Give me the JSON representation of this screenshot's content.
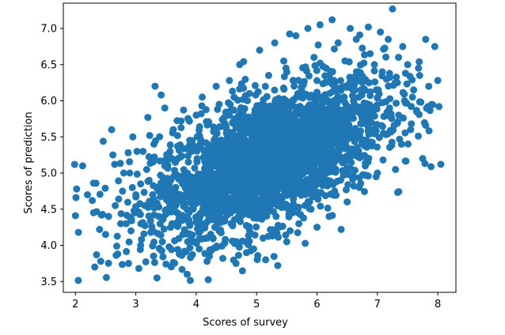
{
  "chart_data": {
    "type": "scatter",
    "title": "",
    "xlabel": "Scores of survey",
    "ylabel": "Scores of prediction",
    "xlim": [
      1.8,
      8.3
    ],
    "ylim": [
      3.35,
      7.35
    ],
    "x_ticks": [
      {
        "value": 2,
        "label": "2"
      },
      {
        "value": 3,
        "label": "3"
      },
      {
        "value": 4,
        "label": "4"
      },
      {
        "value": 5,
        "label": "5"
      },
      {
        "value": 6,
        "label": "6"
      },
      {
        "value": 7,
        "label": "7"
      },
      {
        "value": 8,
        "label": "8"
      }
    ],
    "y_ticks": [
      {
        "value": 3.5,
        "label": "3.5"
      },
      {
        "value": 4.0,
        "label": "4.0"
      },
      {
        "value": 4.5,
        "label": "4.5"
      },
      {
        "value": 5.0,
        "label": "5.0"
      },
      {
        "value": 5.5,
        "label": "5.5"
      },
      {
        "value": 6.0,
        "label": "6.0"
      },
      {
        "value": 6.5,
        "label": "6.5"
      },
      {
        "value": 7.0,
        "label": "7.0"
      }
    ],
    "grid": false,
    "legend": "none",
    "marker_color": "#1f77b4",
    "points": [
      [
        2.02,
        4.78
      ],
      [
        2.01,
        4.66
      ],
      [
        2.0,
        4.41
      ],
      [
        2.05,
        4.18
      ],
      [
        2.12,
        5.1
      ],
      [
        2.2,
        4.7
      ],
      [
        2.28,
        4.62
      ],
      [
        2.3,
        4.86
      ],
      [
        2.32,
        3.7
      ],
      [
        2.35,
        3.87
      ],
      [
        2.3,
        4.45
      ],
      [
        2.4,
        4.22
      ],
      [
        2.42,
        3.78
      ],
      [
        2.46,
        5.44
      ],
      [
        2.5,
        4.15
      ],
      [
        2.55,
        4.4
      ],
      [
        2.6,
        5.6
      ],
      [
        2.62,
        5.25
      ],
      [
        2.65,
        5.12
      ],
      [
        2.66,
        4.55
      ],
      [
        2.7,
        3.88
      ],
      [
        2.75,
        4.3
      ],
      [
        2.78,
        4.75
      ],
      [
        2.8,
        5.0
      ],
      [
        2.84,
        4.3
      ],
      [
        2.88,
        3.75
      ],
      [
        2.9,
        5.0
      ],
      [
        2.95,
        5.5
      ],
      [
        3.0,
        4.7
      ],
      [
        3.02,
        5.3
      ],
      [
        3.05,
        3.68
      ],
      [
        3.08,
        4.0
      ],
      [
        3.12,
        5.3
      ],
      [
        3.15,
        4.55
      ],
      [
        3.2,
        5.77
      ],
      [
        3.22,
        4.9
      ],
      [
        3.25,
        4.18
      ],
      [
        3.3,
        5.4
      ],
      [
        3.35,
        3.55
      ],
      [
        3.38,
        4.75
      ],
      [
        3.42,
        6.08
      ],
      [
        3.44,
        4.05
      ],
      [
        3.48,
        5.9
      ],
      [
        3.5,
        3.74
      ],
      [
        3.55,
        5.2
      ],
      [
        3.6,
        4.3
      ],
      [
        3.62,
        5.6
      ],
      [
        3.68,
        4.6
      ],
      [
        3.72,
        3.88
      ],
      [
        3.75,
        5.72
      ],
      [
        3.78,
        4.95
      ],
      [
        3.85,
        3.6
      ],
      [
        3.9,
        5.35
      ],
      [
        3.95,
        4.5
      ],
      [
        4.0,
        5.8
      ],
      [
        4.05,
        3.95
      ],
      [
        4.1,
        6.05
      ],
      [
        4.12,
        4.6
      ],
      [
        4.18,
        3.78
      ],
      [
        4.22,
        5.3
      ],
      [
        4.28,
        4.1
      ],
      [
        4.33,
        6.2
      ],
      [
        4.38,
        4.75
      ],
      [
        4.44,
        3.82
      ],
      [
        4.5,
        5.55
      ],
      [
        4.55,
        6.28
      ],
      [
        4.6,
        4.3
      ],
      [
        4.66,
        3.75
      ],
      [
        4.72,
        6.5
      ],
      [
        4.78,
        4.9
      ],
      [
        4.82,
        4.05
      ],
      [
        4.88,
        6.1
      ],
      [
        4.95,
        3.95
      ],
      [
        5.0,
        5.4
      ],
      [
        5.05,
        6.7
      ],
      [
        5.1,
        4.6
      ],
      [
        5.15,
        3.8
      ],
      [
        5.2,
        6.35
      ],
      [
        5.25,
        4.2
      ],
      [
        5.3,
        6.8
      ],
      [
        5.35,
        3.72
      ],
      [
        5.4,
        5.0
      ],
      [
        5.45,
        6.55
      ],
      [
        5.5,
        4.05
      ],
      [
        5.55,
        5.75
      ],
      [
        5.6,
        4.45
      ],
      [
        5.65,
        6.9
      ],
      [
        5.7,
        4.3
      ],
      [
        5.75,
        6.2
      ],
      [
        5.8,
        4.75
      ],
      [
        5.85,
        7.0
      ],
      [
        5.9,
        4.5
      ],
      [
        5.95,
        6.6
      ],
      [
        6.0,
        4.25
      ],
      [
        6.05,
        7.05
      ],
      [
        6.1,
        5.0
      ],
      [
        6.15,
        6.45
      ],
      [
        6.2,
        4.4
      ],
      [
        6.25,
        7.12
      ],
      [
        6.3,
        5.3
      ],
      [
        6.35,
        6.8
      ],
      [
        6.4,
        4.22
      ],
      [
        6.45,
        6.05
      ],
      [
        6.5,
        4.6
      ],
      [
        6.55,
        7.0
      ],
      [
        6.6,
        5.55
      ],
      [
        6.65,
        6.85
      ],
      [
        6.7,
        4.8
      ],
      [
        6.75,
        6.25
      ],
      [
        6.8,
        5.1
      ],
      [
        6.85,
        7.02
      ],
      [
        6.9,
        5.7
      ],
      [
        6.95,
        6.5
      ],
      [
        7.0,
        5.0
      ],
      [
        7.05,
        6.95
      ],
      [
        7.1,
        5.55
      ],
      [
        7.15,
        6.3
      ],
      [
        7.2,
        5.9
      ],
      [
        7.25,
        7.27
      ],
      [
        7.3,
        5.05
      ],
      [
        7.35,
        6.6
      ],
      [
        7.4,
        5.4
      ],
      [
        7.45,
        6.0
      ],
      [
        7.5,
        6.5
      ],
      [
        7.55,
        5.6
      ],
      [
        7.6,
        6.15
      ],
      [
        7.65,
        5.85
      ],
      [
        7.7,
        6.35
      ],
      [
        7.75,
        5.2
      ],
      [
        7.8,
        6.85
      ],
      [
        7.85,
        6.2
      ],
      [
        7.9,
        5.95
      ],
      [
        7.95,
        6.75
      ],
      [
        8.0,
        6.28
      ],
      [
        8.05,
        5.12
      ],
      [
        7.72,
        5.98
      ],
      [
        7.68,
        6.45
      ],
      [
        7.58,
        6.05
      ],
      [
        7.42,
        6.75
      ],
      [
        7.33,
        6.25
      ],
      [
        7.18,
        6.85
      ],
      [
        7.08,
        6.4
      ],
      [
        6.98,
        6.15
      ],
      [
        6.88,
        6.65
      ],
      [
        6.78,
        5.95
      ],
      [
        6.68,
        6.4
      ],
      [
        6.58,
        5.8
      ],
      [
        6.48,
        6.2
      ],
      [
        6.38,
        5.65
      ],
      [
        6.28,
        6.0
      ],
      [
        6.18,
        5.5
      ],
      [
        6.08,
        5.85
      ],
      [
        5.98,
        5.35
      ],
      [
        5.88,
        5.7
      ],
      [
        5.78,
        5.2
      ],
      [
        5.68,
        5.55
      ],
      [
        5.58,
        5.05
      ],
      [
        5.48,
        5.4
      ],
      [
        5.38,
        4.9
      ],
      [
        5.28,
        5.25
      ],
      [
        5.18,
        4.75
      ],
      [
        5.08,
        5.1
      ],
      [
        4.98,
        4.6
      ],
      [
        4.88,
        4.95
      ],
      [
        4.78,
        4.45
      ],
      [
        4.68,
        4.8
      ],
      [
        4.58,
        4.3
      ],
      [
        4.48,
        4.65
      ],
      [
        4.38,
        4.2
      ],
      [
        4.28,
        4.55
      ],
      [
        4.18,
        4.1
      ],
      [
        4.08,
        4.45
      ],
      [
        3.98,
        4.05
      ],
      [
        3.88,
        4.35
      ],
      [
        3.78,
        4.15
      ],
      [
        3.68,
        4.45
      ],
      [
        3.58,
        4.9
      ],
      [
        3.48,
        5.1
      ],
      [
        3.38,
        4.4
      ],
      [
        3.28,
        4.7
      ],
      [
        3.18,
        5.05
      ],
      [
        3.08,
        4.85
      ],
      [
        2.98,
        4.45
      ],
      [
        2.92,
        4.2
      ]
    ]
  }
}
